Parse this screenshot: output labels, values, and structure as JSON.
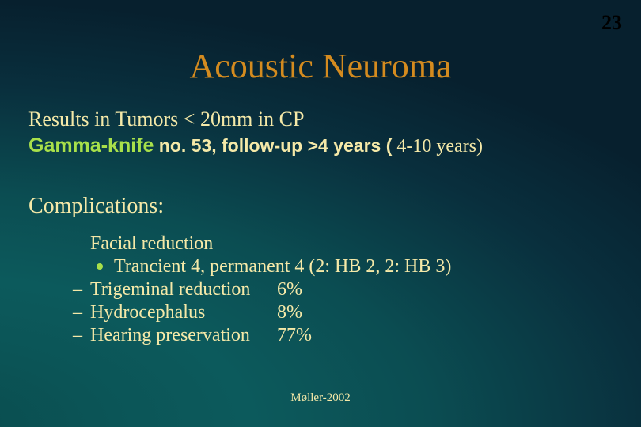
{
  "page_number": "23",
  "title": "Acoustic Neuroma",
  "line1": "Results in Tumors < 20mm in CP",
  "gamma_knife": "Gamma-knife",
  "gamma_rest": " no. 53, follow-up >4 years (",
  "gamma_tail": " 4-10 years)",
  "complications_heading": "Complications:",
  "facial_reduction": "Facial reduction",
  "transient": "Trancient 4, permanent 4 (2: HB 2, 2: HB 3)",
  "rows": [
    {
      "label": "Trigeminal reduction",
      "value": "  6%"
    },
    {
      "label": "Hydrocephalus",
      "value": "  8%"
    },
    {
      "label": "Hearing preservation",
      "value": "77%"
    }
  ],
  "footer": "Møller-2002",
  "colors": {
    "accent_orange": "#d48b1f",
    "accent_green": "#a8e04a",
    "text": "#f5e9a8"
  }
}
